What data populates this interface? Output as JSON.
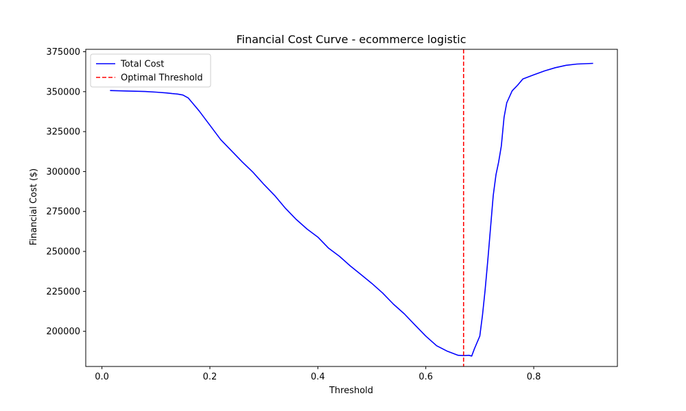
{
  "chart_data": {
    "type": "line",
    "title": "Financial Cost Curve - ecommerce logistic",
    "xlabel": "Threshold",
    "ylabel": "Financial Cost ($)",
    "xlim": [
      -0.03,
      0.955
    ],
    "ylim": [
      178000,
      376500
    ],
    "xticks": [
      0.0,
      0.2,
      0.4,
      0.6,
      0.8
    ],
    "xtick_labels": [
      "0.0",
      "0.2",
      "0.4",
      "0.6",
      "0.8"
    ],
    "yticks": [
      200000,
      225000,
      250000,
      275000,
      300000,
      325000,
      350000,
      375000
    ],
    "ytick_labels": [
      "200000",
      "225000",
      "250000",
      "275000",
      "300000",
      "325000",
      "350000",
      "375000"
    ],
    "legend_position": "upper-left",
    "grid": false,
    "series": [
      {
        "name": "Total Cost",
        "color": "#0000ff",
        "style": "solid",
        "x": [
          0.015,
          0.05,
          0.08,
          0.1,
          0.12,
          0.13,
          0.14,
          0.15,
          0.16,
          0.17,
          0.18,
          0.19,
          0.2,
          0.22,
          0.24,
          0.26,
          0.28,
          0.3,
          0.32,
          0.34,
          0.36,
          0.38,
          0.4,
          0.42,
          0.44,
          0.46,
          0.48,
          0.5,
          0.52,
          0.54,
          0.56,
          0.58,
          0.6,
          0.62,
          0.64,
          0.66,
          0.67,
          0.68,
          0.685,
          0.69,
          0.7,
          0.705,
          0.71,
          0.715,
          0.72,
          0.725,
          0.73,
          0.735,
          0.74,
          0.745,
          0.75,
          0.76,
          0.77,
          0.78,
          0.8,
          0.82,
          0.84,
          0.86,
          0.88,
          0.91
        ],
        "y": [
          350700,
          350400,
          350100,
          349700,
          349200,
          348800,
          348500,
          347900,
          346000,
          342000,
          338000,
          333500,
          329000,
          320000,
          313000,
          306000,
          299500,
          292000,
          285000,
          277000,
          270000,
          264000,
          259000,
          252000,
          247000,
          241000,
          235500,
          230000,
          224000,
          217000,
          211000,
          204000,
          197000,
          191000,
          187500,
          185000,
          184800,
          185000,
          184500,
          189000,
          197000,
          210000,
          226000,
          245000,
          265000,
          285000,
          298000,
          306000,
          316000,
          334000,
          343000,
          350500,
          354000,
          358000,
          360500,
          363000,
          365000,
          366500,
          367300,
          367700
        ]
      },
      {
        "name": "Optimal Threshold",
        "color": "#ff0000",
        "style": "dashed",
        "x_value": 0.67
      }
    ]
  }
}
